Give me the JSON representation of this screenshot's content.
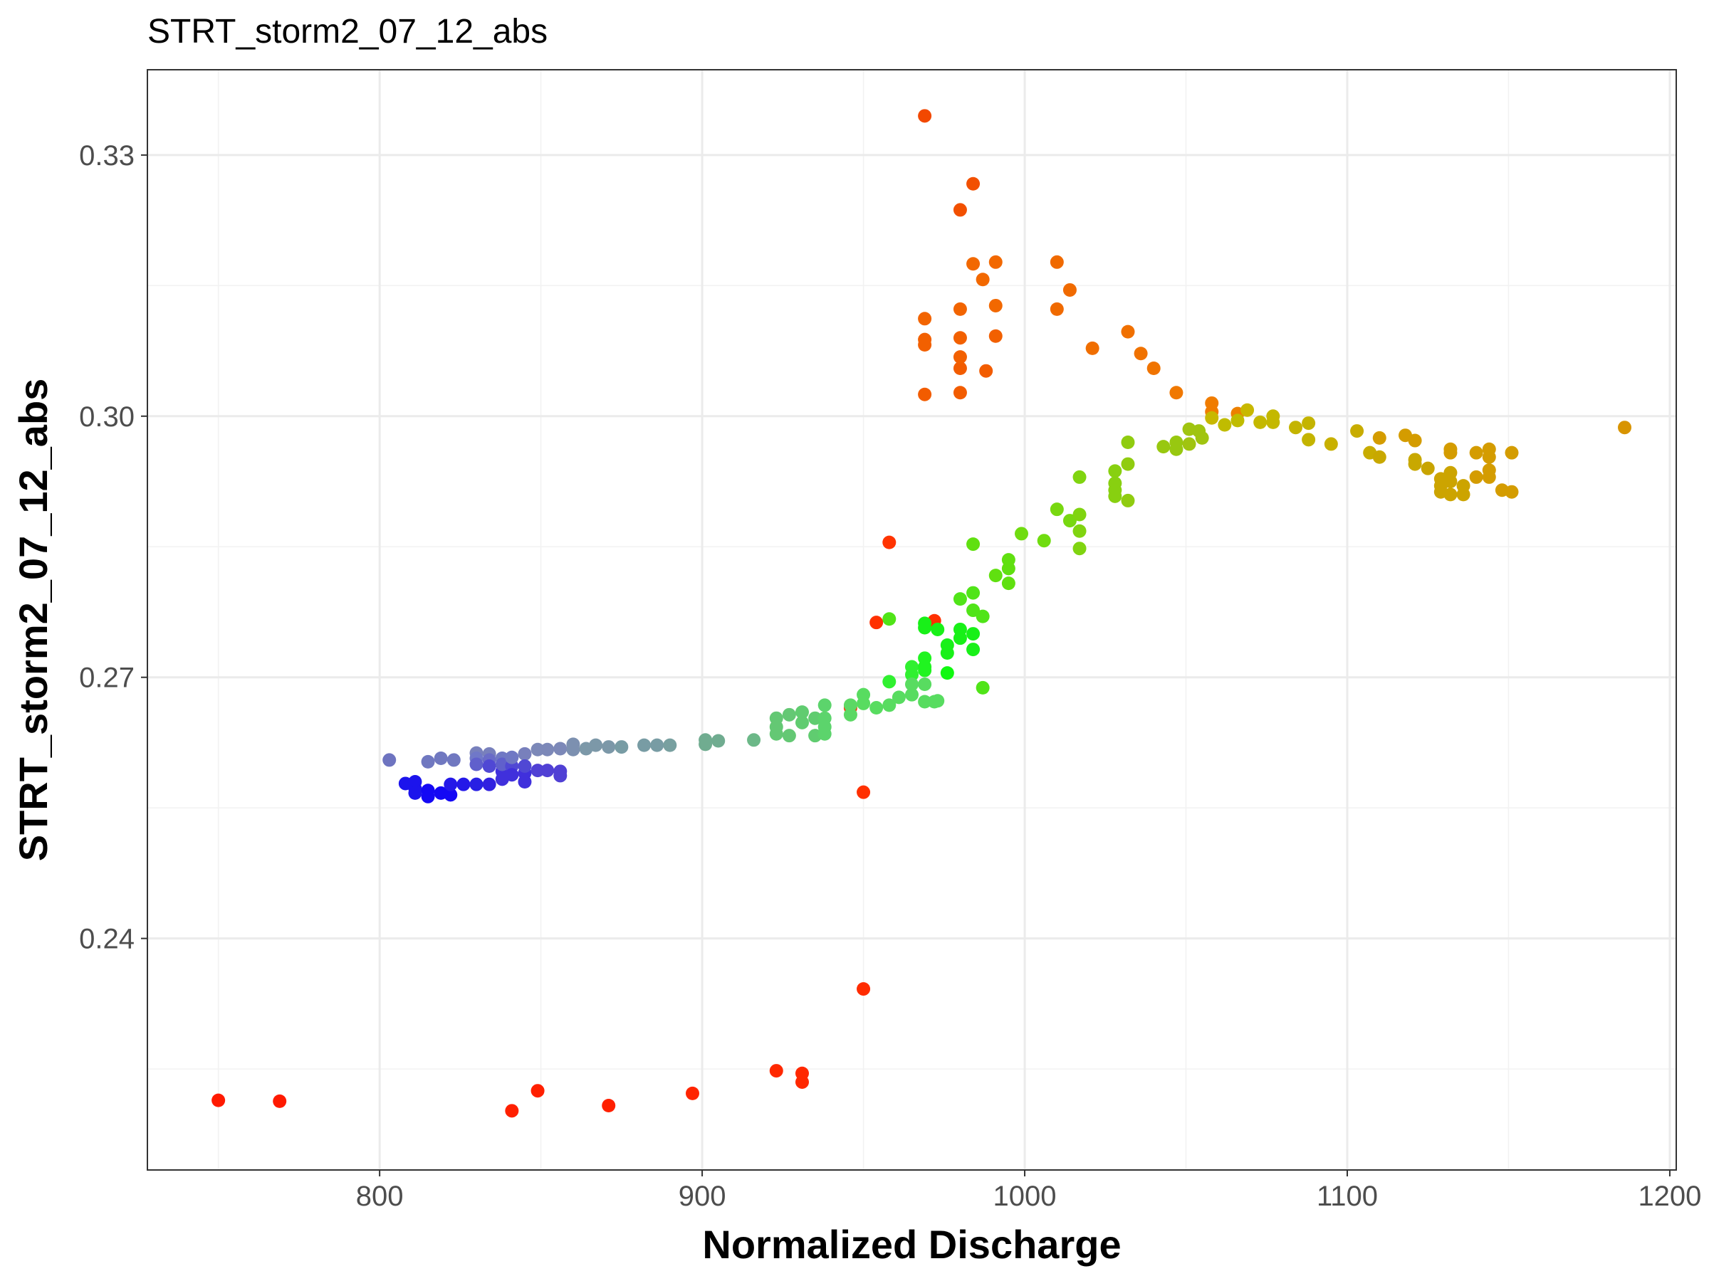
{
  "chart_data": {
    "type": "scatter",
    "title": "STRT_storm2_07_12_abs",
    "xlabel": "Normalized Discharge",
    "ylabel": "STRT_storm2_07_12_abs",
    "xlim": [
      728,
      1202
    ],
    "ylim": [
      0.2134,
      0.3398
    ],
    "x_ticks": [
      800,
      900,
      1000,
      1100,
      1200
    ],
    "x_tick_labels": [
      "800",
      "900",
      "1000",
      "1100",
      "1200"
    ],
    "y_ticks": [
      0.24,
      0.27,
      0.3,
      0.33
    ],
    "y_tick_labels": [
      "0.24",
      "0.27",
      "0.30",
      "0.33"
    ],
    "grid": true,
    "legend": "none",
    "points": [
      {
        "x": 750,
        "y": 0.2214,
        "color": "#ff1a00"
      },
      {
        "x": 769,
        "y": 0.2213,
        "color": "#ff1a00"
      },
      {
        "x": 841,
        "y": 0.2202,
        "color": "#ff2000"
      },
      {
        "x": 849,
        "y": 0.2225,
        "color": "#ff2000"
      },
      {
        "x": 871,
        "y": 0.2208,
        "color": "#ff2000"
      },
      {
        "x": 897,
        "y": 0.2222,
        "color": "#ff2400"
      },
      {
        "x": 923,
        "y": 0.2248,
        "color": "#ff2800"
      },
      {
        "x": 931,
        "y": 0.2245,
        "color": "#ff2800"
      },
      {
        "x": 931,
        "y": 0.2235,
        "color": "#ff2800"
      },
      {
        "x": 950,
        "y": 0.2342,
        "color": "#ff2c00"
      },
      {
        "x": 950,
        "y": 0.2568,
        "color": "#ff3000"
      },
      {
        "x": 946,
        "y": 0.2665,
        "color": "#ff3000"
      },
      {
        "x": 954,
        "y": 0.2763,
        "color": "#ff3000"
      },
      {
        "x": 972,
        "y": 0.2765,
        "color": "#ff3000"
      },
      {
        "x": 958,
        "y": 0.2855,
        "color": "#ff3400"
      },
      {
        "x": 969,
        "y": 0.3025,
        "color": "#f25c00"
      },
      {
        "x": 980,
        "y": 0.3027,
        "color": "#f25c00"
      },
      {
        "x": 980,
        "y": 0.3055,
        "color": "#f25c00"
      },
      {
        "x": 988,
        "y": 0.3052,
        "color": "#f25c00"
      },
      {
        "x": 980,
        "y": 0.3068,
        "color": "#f26000"
      },
      {
        "x": 969,
        "y": 0.3082,
        "color": "#f26000"
      },
      {
        "x": 969,
        "y": 0.3088,
        "color": "#f26000"
      },
      {
        "x": 980,
        "y": 0.309,
        "color": "#f26000"
      },
      {
        "x": 991,
        "y": 0.3092,
        "color": "#f26000"
      },
      {
        "x": 969,
        "y": 0.3112,
        "color": "#f26400"
      },
      {
        "x": 980,
        "y": 0.3123,
        "color": "#f26400"
      },
      {
        "x": 991,
        "y": 0.3127,
        "color": "#f26800"
      },
      {
        "x": 987,
        "y": 0.3157,
        "color": "#f26800"
      },
      {
        "x": 984,
        "y": 0.3175,
        "color": "#f26800"
      },
      {
        "x": 991,
        "y": 0.3177,
        "color": "#f26800"
      },
      {
        "x": 980,
        "y": 0.3237,
        "color": "#f25000"
      },
      {
        "x": 984,
        "y": 0.3267,
        "color": "#f25000"
      },
      {
        "x": 969,
        "y": 0.3345,
        "color": "#f24800"
      },
      {
        "x": 1010,
        "y": 0.3177,
        "color": "#f06a00"
      },
      {
        "x": 1014,
        "y": 0.3145,
        "color": "#f06a00"
      },
      {
        "x": 1010,
        "y": 0.3123,
        "color": "#f06a00"
      },
      {
        "x": 1021,
        "y": 0.3078,
        "color": "#f06e00"
      },
      {
        "x": 1032,
        "y": 0.3097,
        "color": "#f07000"
      },
      {
        "x": 1036,
        "y": 0.3072,
        "color": "#f07200"
      },
      {
        "x": 1040,
        "y": 0.3055,
        "color": "#f07400"
      },
      {
        "x": 1047,
        "y": 0.3027,
        "color": "#f07800"
      },
      {
        "x": 1058,
        "y": 0.3015,
        "color": "#f07c00"
      },
      {
        "x": 1058,
        "y": 0.3005,
        "color": "#f07c00"
      },
      {
        "x": 1066,
        "y": 0.3003,
        "color": "#ec8000"
      },
      {
        "x": 1069,
        "y": 0.3007,
        "color": "#c8b800"
      },
      {
        "x": 1058,
        "y": 0.2998,
        "color": "#c8b800"
      },
      {
        "x": 1062,
        "y": 0.299,
        "color": "#c0bc00"
      },
      {
        "x": 1066,
        "y": 0.2995,
        "color": "#c0bc00"
      },
      {
        "x": 1073,
        "y": 0.2993,
        "color": "#c4b800"
      },
      {
        "x": 1077,
        "y": 0.3,
        "color": "#c4b800"
      },
      {
        "x": 1077,
        "y": 0.2993,
        "color": "#c4b800"
      },
      {
        "x": 1084,
        "y": 0.2987,
        "color": "#c4b400"
      },
      {
        "x": 1088,
        "y": 0.2992,
        "color": "#c4b400"
      },
      {
        "x": 1088,
        "y": 0.2973,
        "color": "#c4b400"
      },
      {
        "x": 1095,
        "y": 0.2968,
        "color": "#c8b000"
      },
      {
        "x": 1103,
        "y": 0.2983,
        "color": "#c8ac00"
      },
      {
        "x": 1107,
        "y": 0.2958,
        "color": "#c8ac00"
      },
      {
        "x": 1110,
        "y": 0.2953,
        "color": "#c8a800"
      },
      {
        "x": 1110,
        "y": 0.2975,
        "color": "#d49c00"
      },
      {
        "x": 1118,
        "y": 0.2978,
        "color": "#d49c00"
      },
      {
        "x": 1121,
        "y": 0.2972,
        "color": "#d49c00"
      },
      {
        "x": 1121,
        "y": 0.295,
        "color": "#c8a800"
      },
      {
        "x": 1121,
        "y": 0.2945,
        "color": "#c8a800"
      },
      {
        "x": 1125,
        "y": 0.294,
        "color": "#c8a400"
      },
      {
        "x": 1129,
        "y": 0.2928,
        "color": "#cca400"
      },
      {
        "x": 1129,
        "y": 0.292,
        "color": "#cca400"
      },
      {
        "x": 1129,
        "y": 0.2913,
        "color": "#cca400"
      },
      {
        "x": 1132,
        "y": 0.2935,
        "color": "#cca400"
      },
      {
        "x": 1132,
        "y": 0.2925,
        "color": "#cca400"
      },
      {
        "x": 1132,
        "y": 0.291,
        "color": "#cca400"
      },
      {
        "x": 1136,
        "y": 0.292,
        "color": "#cca400"
      },
      {
        "x": 1136,
        "y": 0.291,
        "color": "#cca400"
      },
      {
        "x": 1132,
        "y": 0.2962,
        "color": "#d49c00"
      },
      {
        "x": 1132,
        "y": 0.2958,
        "color": "#d49c00"
      },
      {
        "x": 1140,
        "y": 0.2958,
        "color": "#d49c00"
      },
      {
        "x": 1144,
        "y": 0.2962,
        "color": "#d49c00"
      },
      {
        "x": 1144,
        "y": 0.2953,
        "color": "#d49c00"
      },
      {
        "x": 1140,
        "y": 0.293,
        "color": "#d49c00"
      },
      {
        "x": 1144,
        "y": 0.2938,
        "color": "#d49c00"
      },
      {
        "x": 1144,
        "y": 0.293,
        "color": "#d49c00"
      },
      {
        "x": 1148,
        "y": 0.2915,
        "color": "#d49c00"
      },
      {
        "x": 1151,
        "y": 0.2913,
        "color": "#d49c00"
      },
      {
        "x": 1151,
        "y": 0.2958,
        "color": "#d49c00"
      },
      {
        "x": 1186,
        "y": 0.2987,
        "color": "#d89400"
      },
      {
        "x": 803,
        "y": 0.2605,
        "color": "#6e74c0"
      },
      {
        "x": 808,
        "y": 0.2578,
        "color": "#1c14ec"
      },
      {
        "x": 811,
        "y": 0.2572,
        "color": "#1c14ec"
      },
      {
        "x": 811,
        "y": 0.258,
        "color": "#1c14ec"
      },
      {
        "x": 811,
        "y": 0.2567,
        "color": "#1c14ec"
      },
      {
        "x": 815,
        "y": 0.2563,
        "color": "#1408f4"
      },
      {
        "x": 815,
        "y": 0.257,
        "color": "#1408f4"
      },
      {
        "x": 815,
        "y": 0.2603,
        "color": "#7078c0"
      },
      {
        "x": 819,
        "y": 0.2607,
        "color": "#7078c0"
      },
      {
        "x": 819,
        "y": 0.2567,
        "color": "#1408f4"
      },
      {
        "x": 822,
        "y": 0.2565,
        "color": "#1408f4"
      },
      {
        "x": 822,
        "y": 0.2577,
        "color": "#2418e8"
      },
      {
        "x": 823,
        "y": 0.2605,
        "color": "#7078c0"
      },
      {
        "x": 826,
        "y": 0.2577,
        "color": "#2418e8"
      },
      {
        "x": 830,
        "y": 0.2577,
        "color": "#2820e4"
      },
      {
        "x": 830,
        "y": 0.2613,
        "color": "#7880bc"
      },
      {
        "x": 830,
        "y": 0.2607,
        "color": "#7078c8"
      },
      {
        "x": 830,
        "y": 0.26,
        "color": "#6060cc"
      },
      {
        "x": 834,
        "y": 0.2577,
        "color": "#3020e0"
      },
      {
        "x": 834,
        "y": 0.2612,
        "color": "#7880bc"
      },
      {
        "x": 834,
        "y": 0.2605,
        "color": "#6a6cc8"
      },
      {
        "x": 834,
        "y": 0.2598,
        "color": "#5048d4"
      },
      {
        "x": 838,
        "y": 0.2583,
        "color": "#4030dc"
      },
      {
        "x": 838,
        "y": 0.2592,
        "color": "#4030dc"
      },
      {
        "x": 838,
        "y": 0.2607,
        "color": "#7078c4"
      },
      {
        "x": 838,
        "y": 0.26,
        "color": "#6060cc"
      },
      {
        "x": 841,
        "y": 0.2598,
        "color": "#5048d4"
      },
      {
        "x": 841,
        "y": 0.2608,
        "color": "#7078c4"
      },
      {
        "x": 841,
        "y": 0.2588,
        "color": "#4030dc"
      },
      {
        "x": 845,
        "y": 0.2612,
        "color": "#7880bc"
      },
      {
        "x": 845,
        "y": 0.258,
        "color": "#4030dc"
      },
      {
        "x": 845,
        "y": 0.259,
        "color": "#4030dc"
      },
      {
        "x": 845,
        "y": 0.2598,
        "color": "#5048d4"
      },
      {
        "x": 849,
        "y": 0.2617,
        "color": "#7c88b8"
      },
      {
        "x": 849,
        "y": 0.2593,
        "color": "#5040d4"
      },
      {
        "x": 852,
        "y": 0.2593,
        "color": "#5040d4"
      },
      {
        "x": 852,
        "y": 0.2617,
        "color": "#7c88b8"
      },
      {
        "x": 856,
        "y": 0.2618,
        "color": "#7c88b8"
      },
      {
        "x": 856,
        "y": 0.2592,
        "color": "#5040d4"
      },
      {
        "x": 856,
        "y": 0.2587,
        "color": "#5040d4"
      },
      {
        "x": 860,
        "y": 0.2623,
        "color": "#7c90b0"
      },
      {
        "x": 860,
        "y": 0.2617,
        "color": "#7c90b0"
      },
      {
        "x": 864,
        "y": 0.2618,
        "color": "#7c98a8"
      },
      {
        "x": 867,
        "y": 0.2622,
        "color": "#7c98a8"
      },
      {
        "x": 871,
        "y": 0.262,
        "color": "#7c98a8"
      },
      {
        "x": 875,
        "y": 0.262,
        "color": "#789ca4"
      },
      {
        "x": 882,
        "y": 0.2622,
        "color": "#789ca4"
      },
      {
        "x": 886,
        "y": 0.2622,
        "color": "#789ca4"
      },
      {
        "x": 890,
        "y": 0.2622,
        "color": "#78a0a0"
      },
      {
        "x": 901,
        "y": 0.2628,
        "color": "#70ac90"
      },
      {
        "x": 901,
        "y": 0.2623,
        "color": "#70ac90"
      },
      {
        "x": 905,
        "y": 0.2627,
        "color": "#70ac90"
      },
      {
        "x": 916,
        "y": 0.2628,
        "color": "#6cb888"
      },
      {
        "x": 923,
        "y": 0.2653,
        "color": "#64c874"
      },
      {
        "x": 923,
        "y": 0.2643,
        "color": "#64c874"
      },
      {
        "x": 923,
        "y": 0.2635,
        "color": "#64c874"
      },
      {
        "x": 927,
        "y": 0.2657,
        "color": "#64c874"
      },
      {
        "x": 927,
        "y": 0.2633,
        "color": "#64c874"
      },
      {
        "x": 931,
        "y": 0.266,
        "color": "#60cc70"
      },
      {
        "x": 931,
        "y": 0.2648,
        "color": "#60cc70"
      },
      {
        "x": 935,
        "y": 0.2653,
        "color": "#60cc70"
      },
      {
        "x": 935,
        "y": 0.2633,
        "color": "#60cc70"
      },
      {
        "x": 938,
        "y": 0.2668,
        "color": "#5cd46c"
      },
      {
        "x": 938,
        "y": 0.2653,
        "color": "#5cd46c"
      },
      {
        "x": 938,
        "y": 0.2643,
        "color": "#5cd46c"
      },
      {
        "x": 938,
        "y": 0.2635,
        "color": "#5cd46c"
      },
      {
        "x": 946,
        "y": 0.2668,
        "color": "#5cd864"
      },
      {
        "x": 946,
        "y": 0.2657,
        "color": "#5cd864"
      },
      {
        "x": 950,
        "y": 0.268,
        "color": "#58dc60"
      },
      {
        "x": 950,
        "y": 0.267,
        "color": "#58dc60"
      },
      {
        "x": 954,
        "y": 0.2665,
        "color": "#58dc60"
      },
      {
        "x": 958,
        "y": 0.2695,
        "color": "#30f030"
      },
      {
        "x": 958,
        "y": 0.2668,
        "color": "#58dc60"
      },
      {
        "x": 961,
        "y": 0.2677,
        "color": "#58dc60"
      },
      {
        "x": 965,
        "y": 0.2712,
        "color": "#30f030"
      },
      {
        "x": 965,
        "y": 0.2703,
        "color": "#30f030"
      },
      {
        "x": 965,
        "y": 0.2692,
        "color": "#58dc60"
      },
      {
        "x": 965,
        "y": 0.268,
        "color": "#58dc60"
      },
      {
        "x": 969,
        "y": 0.2722,
        "color": "#20f420"
      },
      {
        "x": 969,
        "y": 0.2712,
        "color": "#20f420"
      },
      {
        "x": 969,
        "y": 0.2708,
        "color": "#20f420"
      },
      {
        "x": 969,
        "y": 0.2692,
        "color": "#58dc60"
      },
      {
        "x": 969,
        "y": 0.2672,
        "color": "#58dc60"
      },
      {
        "x": 972,
        "y": 0.2672,
        "color": "#58dc60"
      },
      {
        "x": 973,
        "y": 0.2673,
        "color": "#58dc60"
      },
      {
        "x": 976,
        "y": 0.2705,
        "color": "#10f810"
      },
      {
        "x": 958,
        "y": 0.2767,
        "color": "#50e418"
      },
      {
        "x": 969,
        "y": 0.2762,
        "color": "#18f018"
      },
      {
        "x": 969,
        "y": 0.2757,
        "color": "#18f018"
      },
      {
        "x": 973,
        "y": 0.2755,
        "color": "#18f018"
      },
      {
        "x": 976,
        "y": 0.2737,
        "color": "#18f018"
      },
      {
        "x": 976,
        "y": 0.2728,
        "color": "#18f018"
      },
      {
        "x": 980,
        "y": 0.2755,
        "color": "#18f018"
      },
      {
        "x": 980,
        "y": 0.2745,
        "color": "#18f018"
      },
      {
        "x": 984,
        "y": 0.275,
        "color": "#18f018"
      },
      {
        "x": 984,
        "y": 0.2732,
        "color": "#18f018"
      },
      {
        "x": 980,
        "y": 0.279,
        "color": "#50e418"
      },
      {
        "x": 984,
        "y": 0.2797,
        "color": "#50e418"
      },
      {
        "x": 984,
        "y": 0.2777,
        "color": "#50e418"
      },
      {
        "x": 987,
        "y": 0.277,
        "color": "#50e418"
      },
      {
        "x": 987,
        "y": 0.2688,
        "color": "#50e418"
      },
      {
        "x": 984,
        "y": 0.2853,
        "color": "#60e010"
      },
      {
        "x": 991,
        "y": 0.2817,
        "color": "#60e010"
      },
      {
        "x": 995,
        "y": 0.2835,
        "color": "#60e010"
      },
      {
        "x": 995,
        "y": 0.2825,
        "color": "#60e010"
      },
      {
        "x": 995,
        "y": 0.2808,
        "color": "#60e010"
      },
      {
        "x": 999,
        "y": 0.2865,
        "color": "#70dc10"
      },
      {
        "x": 1006,
        "y": 0.2857,
        "color": "#70dc10"
      },
      {
        "x": 1010,
        "y": 0.2893,
        "color": "#78d810"
      },
      {
        "x": 1014,
        "y": 0.288,
        "color": "#78d810"
      },
      {
        "x": 1017,
        "y": 0.293,
        "color": "#80d410"
      },
      {
        "x": 1017,
        "y": 0.2887,
        "color": "#80d410"
      },
      {
        "x": 1017,
        "y": 0.2868,
        "color": "#80d410"
      },
      {
        "x": 1017,
        "y": 0.2848,
        "color": "#80d410"
      },
      {
        "x": 1028,
        "y": 0.2937,
        "color": "#88d010"
      },
      {
        "x": 1028,
        "y": 0.2923,
        "color": "#88d010"
      },
      {
        "x": 1028,
        "y": 0.2915,
        "color": "#88d010"
      },
      {
        "x": 1028,
        "y": 0.2908,
        "color": "#88d010"
      },
      {
        "x": 1032,
        "y": 0.297,
        "color": "#90cc10"
      },
      {
        "x": 1032,
        "y": 0.2945,
        "color": "#90cc10"
      },
      {
        "x": 1032,
        "y": 0.2903,
        "color": "#90cc10"
      },
      {
        "x": 1043,
        "y": 0.2965,
        "color": "#98c810"
      },
      {
        "x": 1047,
        "y": 0.297,
        "color": "#98c810"
      },
      {
        "x": 1047,
        "y": 0.2962,
        "color": "#98c810"
      },
      {
        "x": 1051,
        "y": 0.2985,
        "color": "#a0c410"
      },
      {
        "x": 1051,
        "y": 0.2968,
        "color": "#a0c410"
      },
      {
        "x": 1054,
        "y": 0.2983,
        "color": "#a0c410"
      },
      {
        "x": 1055,
        "y": 0.2975,
        "color": "#a0c410"
      }
    ]
  }
}
